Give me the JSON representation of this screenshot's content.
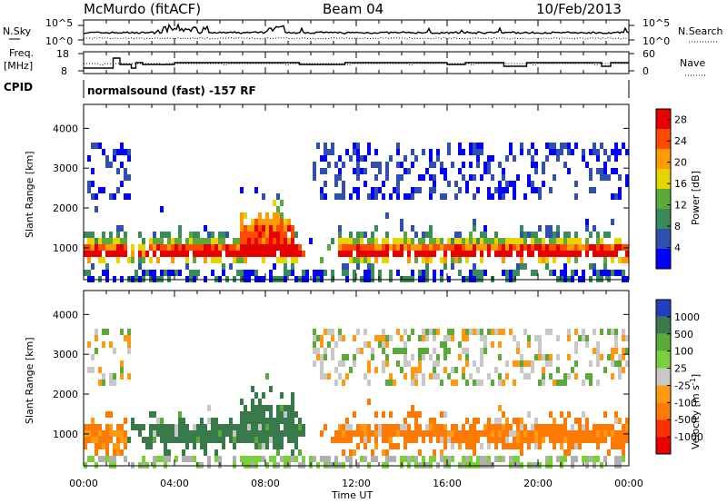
{
  "header": {
    "station": "McMurdo (fitACF)",
    "beam": "Beam 04",
    "date": "10/Feb/2013"
  },
  "noise_panel": {
    "left_label": "N.Sky",
    "right_label": "N.Search",
    "left_ticks": [
      "10^5",
      "10^0"
    ],
    "right_ticks": [
      "10^5",
      "10^0"
    ]
  },
  "freq_panel": {
    "left_label_line1": "Freq.",
    "left_label_line2": "[MHz]",
    "left_ticks": [
      "18",
      "8"
    ],
    "right_ticks": [
      "60",
      "0"
    ],
    "right_label": "Nave"
  },
  "cpid": {
    "label": "CPID",
    "value": "normalsound (fast) -157 RF"
  },
  "colors": {
    "power": [
      "#0000ff",
      "#3050b0",
      "#3a8a5a",
      "#5aaa3a",
      "#e6d400",
      "#ff9a00",
      "#ff4a00",
      "#e60000"
    ],
    "velocity": [
      "#2040c0",
      "#3a7a4a",
      "#5aaa3a",
      "#7ad03a",
      "#c8c8c8",
      "#ff9a10",
      "#ff7a00",
      "#ff3000",
      "#e60000"
    ],
    "ground_scatter": "#b0b0b0"
  },
  "chart_data": [
    {
      "type": "heatmap",
      "name": "power",
      "ylabel": "Slant Range [km]",
      "yticks": [
        "1000",
        "2000",
        "3000",
        "4000"
      ],
      "ylim": [
        200,
        4600
      ],
      "xlim_hours": [
        0,
        24
      ],
      "colorbar_label": "Power [dB]",
      "colorbar_ticks": [
        "4",
        "8",
        "12",
        "16",
        "20",
        "24",
        "28"
      ],
      "colorbar_range": [
        0,
        30
      ]
    },
    {
      "type": "heatmap",
      "name": "velocity",
      "ylabel": "Slant Range [km]",
      "yticks": [
        "1000",
        "2000",
        "3000",
        "4000"
      ],
      "ylim": [
        200,
        4600
      ],
      "xlim_hours": [
        0,
        24
      ],
      "colorbar_label": "Velocity [m s",
      "colorbar_label_sup": "-1",
      "colorbar_label_end": "]",
      "colorbar_ticks": [
        "1000",
        "500",
        "100",
        "25",
        "-25",
        "-100",
        "-500",
        "-1000"
      ]
    }
  ],
  "xaxis": {
    "ticks": [
      "00:00",
      "04:00",
      "08:00",
      "12:00",
      "16:00",
      "20:00",
      "00:00"
    ],
    "label": "Time UT"
  }
}
